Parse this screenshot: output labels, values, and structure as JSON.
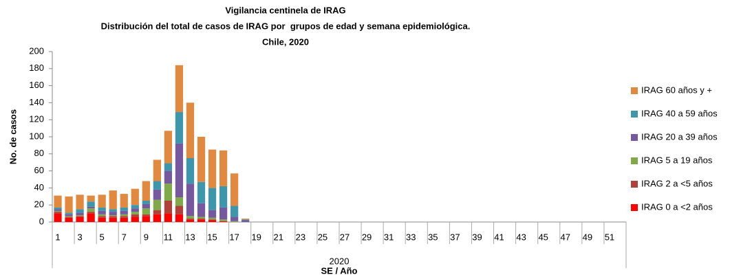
{
  "chart_data": {
    "type": "stacked-bar",
    "title": [
      "Vigilancia centinela de IRAG",
      "Distribución del total de casos de IRAG por  grupos de edad y semana epidemiológica.",
      "Chile, 2020"
    ],
    "ylabel": "No. de casos",
    "xlabel": "SE / Año",
    "x_group_label": "2020",
    "categories": [
      "1",
      null,
      "3",
      null,
      "5",
      null,
      "7",
      null,
      "9",
      null,
      "11",
      null,
      "13",
      null,
      "15",
      null,
      "17",
      null,
      "19",
      null,
      "21",
      null,
      "23",
      null,
      "25",
      null,
      "27",
      null,
      "29",
      null,
      "31",
      null,
      "33",
      null,
      "35",
      null,
      "37",
      null,
      "39",
      null,
      "41",
      null,
      "43",
      null,
      "45",
      null,
      "47",
      null,
      "49",
      null,
      "51",
      null
    ],
    "ylim": [
      0,
      200
    ],
    "yticks": [
      0,
      20,
      40,
      60,
      80,
      100,
      120,
      140,
      160,
      180,
      200
    ],
    "legend": "right",
    "series": [
      {
        "name": "IRAG 0 a <2 años",
        "color": "#ff0000",
        "values": [
          10,
          5,
          6,
          10,
          5,
          5,
          5,
          6,
          7,
          9,
          10,
          9,
          3,
          3,
          2,
          1,
          0,
          0,
          null,
          null,
          null,
          null,
          null,
          null,
          null,
          null,
          null,
          null,
          null,
          null,
          null,
          null,
          null,
          null,
          null,
          null,
          null,
          null,
          null,
          null,
          null,
          null,
          null,
          null,
          null,
          null,
          null,
          null,
          null,
          null,
          null,
          null
        ]
      },
      {
        "name": "IRAG 2 a <5 años",
        "color": "#b0403a",
        "values": [
          2,
          1,
          1,
          2,
          2,
          2,
          2,
          3,
          2,
          5,
          15,
          10,
          1,
          1,
          1,
          0,
          0,
          0,
          null,
          null,
          null,
          null,
          null,
          null,
          null,
          null,
          null,
          null,
          null,
          null,
          null,
          null,
          null,
          null,
          null,
          null,
          null,
          null,
          null,
          null,
          null,
          null,
          null,
          null,
          null,
          null,
          null,
          null,
          null,
          null,
          null,
          null
        ]
      },
      {
        "name": "IRAG 5 a 19 años",
        "color": "#80a94a",
        "values": [
          1,
          1,
          1,
          4,
          2,
          1,
          2,
          3,
          7,
          12,
          20,
          10,
          3,
          2,
          2,
          2,
          1,
          0,
          null,
          null,
          null,
          null,
          null,
          null,
          null,
          null,
          null,
          null,
          null,
          null,
          null,
          null,
          null,
          null,
          null,
          null,
          null,
          null,
          null,
          null,
          null,
          null,
          null,
          null,
          null,
          null,
          null,
          null,
          null,
          null,
          null,
          null
        ]
      },
      {
        "name": "IRAG 20 a 39 años",
        "color": "#75589d",
        "values": [
          2,
          2,
          3,
          2,
          4,
          4,
          4,
          4,
          5,
          12,
          15,
          63,
          38,
          16,
          9,
          14,
          5,
          2,
          null,
          null,
          null,
          null,
          null,
          null,
          null,
          null,
          null,
          null,
          null,
          null,
          null,
          null,
          null,
          null,
          null,
          null,
          null,
          null,
          null,
          null,
          null,
          null,
          null,
          null,
          null,
          null,
          null,
          null,
          null,
          null,
          null,
          null
        ]
      },
      {
        "name": "IRAG 40 a 59 años",
        "color": "#3e96ab",
        "values": [
          2,
          2,
          4,
          6,
          4,
          3,
          4,
          4,
          4,
          10,
          9,
          37,
          30,
          25,
          26,
          25,
          13,
          1,
          null,
          null,
          null,
          null,
          null,
          null,
          null,
          null,
          null,
          null,
          null,
          null,
          null,
          null,
          null,
          null,
          null,
          null,
          null,
          null,
          null,
          null,
          null,
          null,
          null,
          null,
          null,
          null,
          null,
          null,
          null,
          null,
          null,
          null
        ]
      },
      {
        "name": "IRAG 60 años y +",
        "color": "#e0893f",
        "values": [
          14,
          19,
          17,
          7,
          15,
          22,
          16,
          19,
          23,
          25,
          38,
          55,
          65,
          53,
          45,
          42,
          38,
          1,
          null,
          null,
          null,
          null,
          null,
          null,
          null,
          null,
          null,
          null,
          null,
          null,
          null,
          null,
          null,
          null,
          null,
          null,
          null,
          null,
          null,
          null,
          null,
          null,
          null,
          null,
          null,
          null,
          null,
          null,
          null,
          null,
          null,
          null
        ]
      }
    ]
  }
}
